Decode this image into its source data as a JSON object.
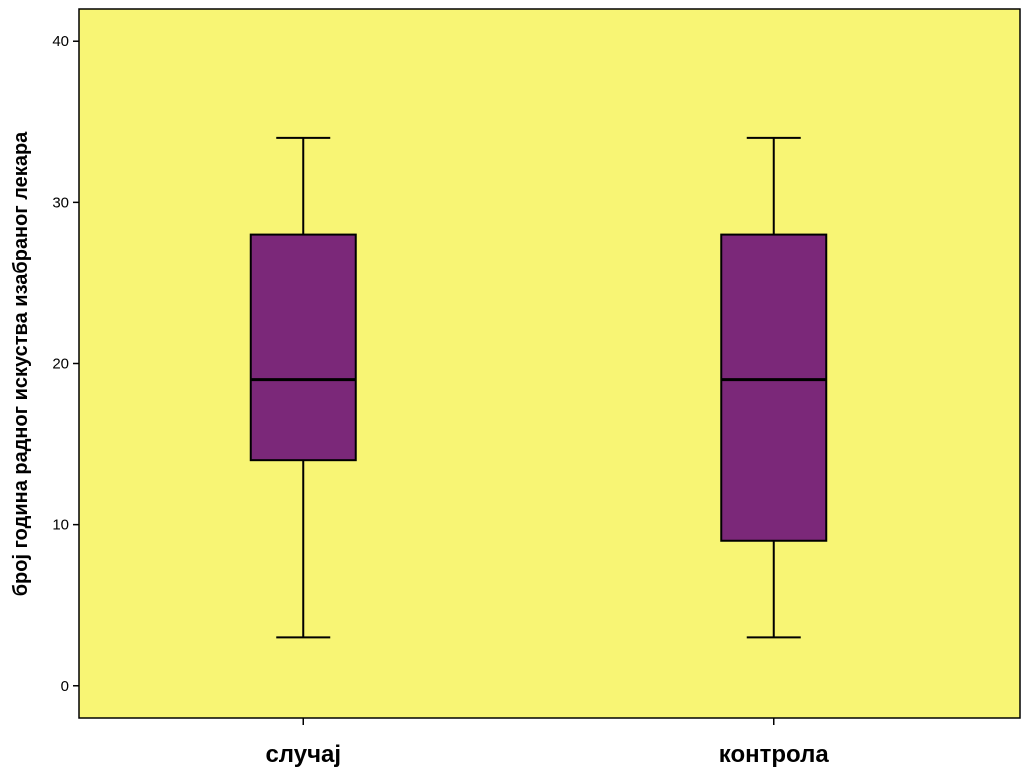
{
  "chart_data": {
    "type": "boxplot",
    "title": "",
    "xlabel": "",
    "ylabel": "број година радног искуства изабраног лекара",
    "ylim": [
      -2,
      42
    ],
    "yticks": [
      0,
      10,
      20,
      30,
      40
    ],
    "grid": false,
    "categories": [
      "случај",
      "контрола"
    ],
    "boxes": [
      {
        "category": "случај",
        "whisker_low": 3,
        "q1": 14,
        "median": 19,
        "q3": 28,
        "whisker_high": 34
      },
      {
        "category": "контрола",
        "whisker_low": 3,
        "q1": 9,
        "median": 19,
        "q3": 28,
        "whisker_high": 34
      }
    ]
  },
  "colors": {
    "plot_background": "#f8f574",
    "box_fill": "#7b2879",
    "stroke": "#000000"
  }
}
